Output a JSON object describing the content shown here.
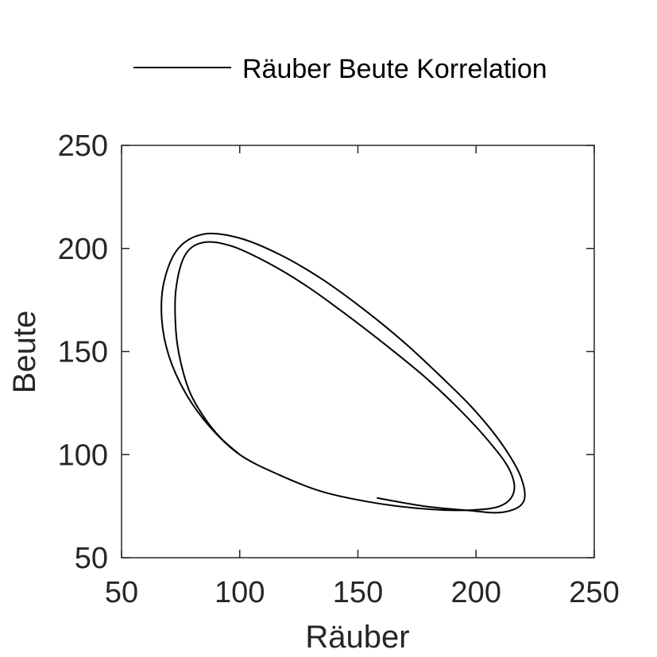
{
  "chart_data": {
    "type": "line",
    "title": "",
    "xlabel": "Räuber",
    "ylabel": "Beute",
    "xlim": [
      50,
      250
    ],
    "ylim": [
      50,
      250
    ],
    "xticks": [
      50,
      100,
      150,
      200,
      250
    ],
    "yticks": [
      50,
      100,
      150,
      200,
      250
    ],
    "grid": false,
    "legend": {
      "position": "top-center",
      "entries": [
        "Räuber Beute Korrelation"
      ]
    },
    "series": [
      {
        "name": "Räuber Beute Korrelation",
        "color": "#000000",
        "x": [
          100,
          92,
          85,
          79,
          75,
          73,
          73,
          77,
          85,
          97,
          112,
          128,
          145,
          162,
          178,
          192,
          205,
          214,
          216,
          210,
          195,
          175,
          155,
          135,
          117,
          100,
          87,
          77,
          70,
          67,
          68,
          74,
          85,
          100,
          117,
          135,
          153,
          170,
          185,
          199,
          211,
          219,
          220,
          211,
          196,
          178,
          158
        ],
        "y": [
          100,
          108,
          118,
          130,
          145,
          160,
          180,
          197,
          203,
          201,
          193,
          182,
          168,
          153,
          138,
          123,
          107,
          93,
          82,
          75,
          73,
          74,
          77,
          82,
          90,
          100,
          114,
          130,
          148,
          166,
          184,
          200,
          207,
          205,
          197,
          185,
          170,
          154,
          138,
          122,
          105,
          89,
          77,
          72,
          73,
          75,
          79
        ]
      }
    ]
  }
}
